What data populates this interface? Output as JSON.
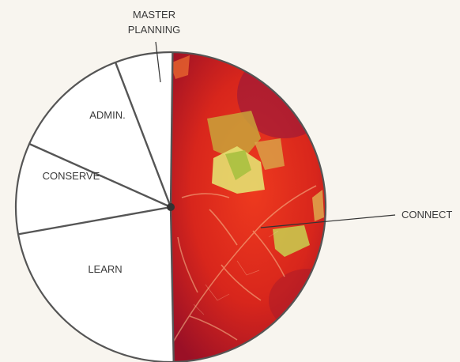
{
  "chart_data": {
    "type": "pie",
    "title": "",
    "slices": [
      {
        "label": "CONNECT",
        "value": 49.5,
        "color": "#d8261c",
        "fill_style": "photo-texture"
      },
      {
        "label": "LEARN",
        "value": 22.5,
        "color": "#ffffff"
      },
      {
        "label": "CONSERVE",
        "value": 9.5,
        "color": "#ffffff"
      },
      {
        "label": "ADMIN.",
        "value": 12.5,
        "color": "#ffffff"
      },
      {
        "label": "MASTER PLANNING",
        "label_lines": [
          "MASTER",
          "PLANNING"
        ],
        "value": 6.0,
        "color": "#ffffff"
      }
    ],
    "outline_color": "#555555",
    "center_dot_color": "#333333",
    "legend": "none"
  }
}
